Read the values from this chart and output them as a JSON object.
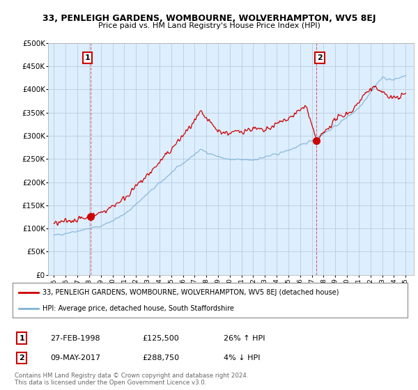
{
  "title": "33, PENLEIGH GARDENS, WOMBOURNE, WOLVERHAMPTON, WV5 8EJ",
  "subtitle": "Price paid vs. HM Land Registry's House Price Index (HPI)",
  "legend_line1": "33, PENLEIGH GARDENS, WOMBOURNE, WOLVERHAMPTON, WV5 8EJ (detached house)",
  "legend_line2": "HPI: Average price, detached house, South Staffordshire",
  "annotation1_date": "27-FEB-1998",
  "annotation1_price": "£125,500",
  "annotation1_hpi": "26% ↑ HPI",
  "annotation2_date": "09-MAY-2017",
  "annotation2_price": "£288,750",
  "annotation2_hpi": "4% ↓ HPI",
  "footer": "Contains HM Land Registry data © Crown copyright and database right 2024.\nThis data is licensed under the Open Government Licence v3.0.",
  "red_color": "#cc0000",
  "blue_color": "#7fb3d3",
  "bg_fill_color": "#ddeeff",
  "background_color": "#ffffff",
  "grid_color": "#bbccdd",
  "ylim": [
    0,
    500000
  ],
  "yticks": [
    0,
    50000,
    100000,
    150000,
    200000,
    250000,
    300000,
    350000,
    400000,
    450000,
    500000
  ],
  "sale1_year": 1998.15,
  "sale1_price": 125500,
  "sale2_year": 2017.37,
  "sale2_price": 288750
}
